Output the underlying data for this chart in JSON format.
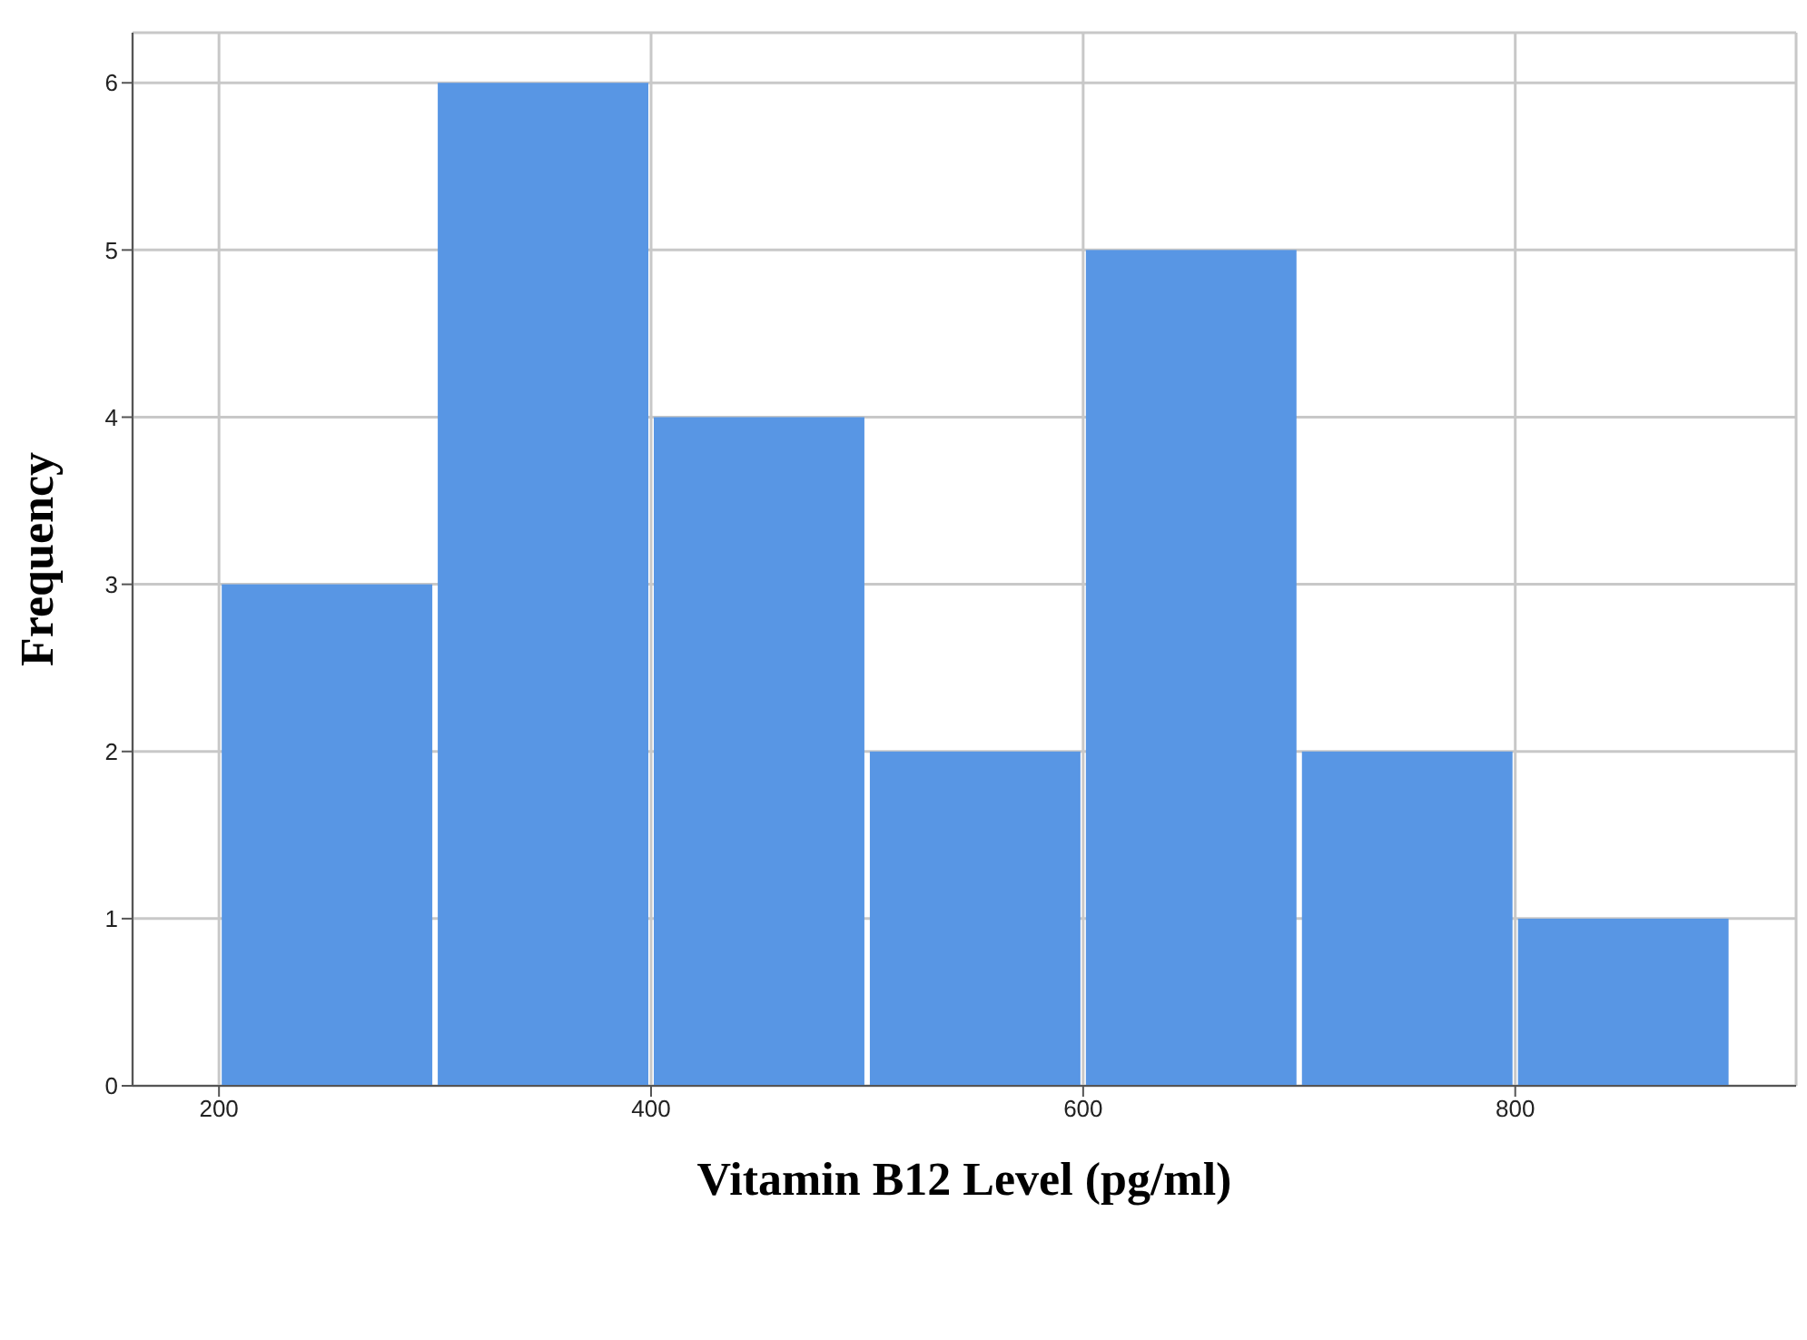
{
  "chart_data": {
    "type": "histogram",
    "xlabel": "Vitamin B12 Level (pg/ml)",
    "ylabel": "Frequency",
    "bins": [
      200,
      300,
      400,
      500,
      600,
      700,
      800,
      900
    ],
    "values": [
      3,
      6,
      4,
      2,
      5,
      2,
      1
    ],
    "color": "#5896e4",
    "xlim": [
      160,
      930
    ],
    "xticks": [
      200,
      400,
      600,
      800
    ],
    "ylim": [
      0,
      6.3
    ],
    "yticks": [
      0,
      1,
      2,
      3,
      4,
      5,
      6
    ],
    "grid": true
  }
}
